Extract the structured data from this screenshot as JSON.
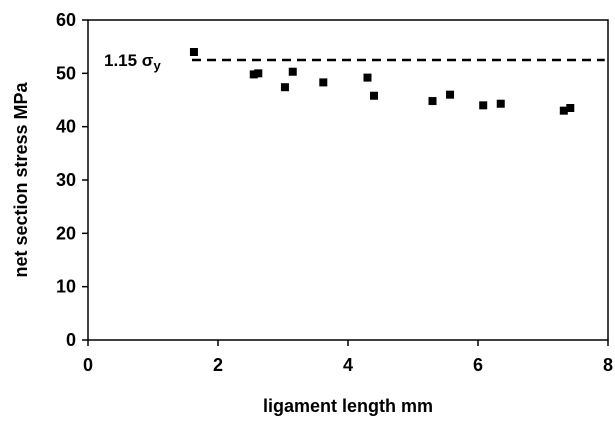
{
  "chart_data": {
    "type": "scatter",
    "xlabel": "ligament length mm",
    "ylabel": "net section stress  MPa",
    "xlim": [
      0,
      8
    ],
    "ylim": [
      0,
      60
    ],
    "xticks": [
      "0",
      "2",
      "4",
      "6",
      "8"
    ],
    "yticks": [
      "0",
      "10",
      "20",
      "30",
      "40",
      "50",
      "60"
    ],
    "grid": false,
    "legend": "none",
    "marker": "square",
    "marker_color": "#000000",
    "points": [
      {
        "x": 1.63,
        "y": 54.0
      },
      {
        "x": 2.55,
        "y": 49.8
      },
      {
        "x": 2.62,
        "y": 50.0
      },
      {
        "x": 3.03,
        "y": 47.4
      },
      {
        "x": 3.15,
        "y": 50.3
      },
      {
        "x": 3.62,
        "y": 48.3
      },
      {
        "x": 4.3,
        "y": 49.2
      },
      {
        "x": 4.4,
        "y": 45.8
      },
      {
        "x": 5.3,
        "y": 44.8
      },
      {
        "x": 5.57,
        "y": 46.0
      },
      {
        "x": 6.08,
        "y": 44.0
      },
      {
        "x": 6.35,
        "y": 44.3
      },
      {
        "x": 7.32,
        "y": 43.0
      },
      {
        "x": 7.42,
        "y": 43.5
      }
    ],
    "reference_line": {
      "y": 52.5,
      "x_start": 1.6,
      "x_end": 7.95,
      "style": "dashed",
      "label_main": "1.15 σ",
      "label_sub": "y"
    }
  }
}
